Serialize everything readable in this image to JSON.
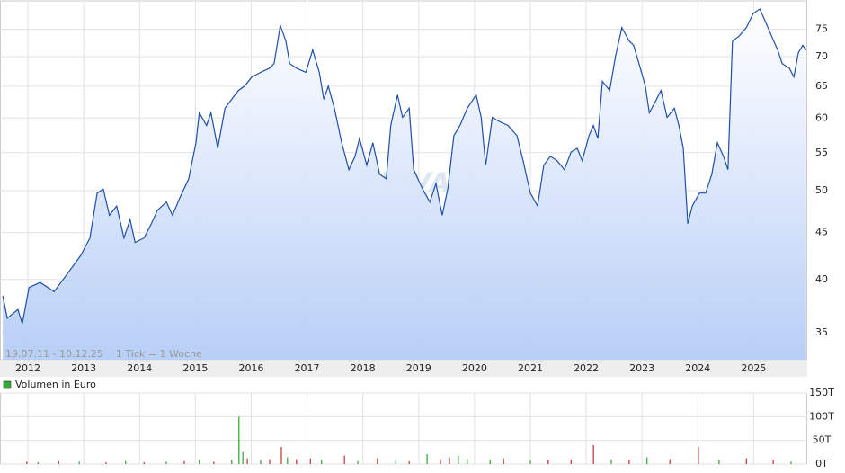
{
  "chart_data": [
    {
      "type": "line",
      "log_scale": true,
      "grid": true,
      "color": "#1f4fa8",
      "annotation": "19.07.11 - 10.12.25    1 Tick = 1 Woche",
      "watermark": "ARIVA",
      "x": [
        2011.55,
        2011.63,
        2011.82,
        2011.9,
        2012.02,
        2012.22,
        2012.47,
        2012.71,
        2012.95,
        2013.11,
        2013.24,
        2013.35,
        2013.46,
        2013.59,
        2013.72,
        2013.83,
        2013.92,
        2014.08,
        2014.21,
        2014.32,
        2014.48,
        2014.59,
        2014.72,
        2014.88,
        2015.01,
        2015.07,
        2015.2,
        2015.28,
        2015.4,
        2015.53,
        2015.65,
        2015.77,
        2015.88,
        2016.01,
        2016.17,
        2016.33,
        2016.41,
        2016.52,
        2016.62,
        2016.69,
        2016.81,
        2016.98,
        2017.1,
        2017.22,
        2017.3,
        2017.38,
        2017.49,
        2017.62,
        2017.75,
        2017.86,
        2017.94,
        2018.07,
        2018.18,
        2018.3,
        2018.42,
        2018.5,
        2018.62,
        2018.71,
        2018.83,
        2018.91,
        2019.07,
        2019.2,
        2019.31,
        2019.42,
        2019.52,
        2019.63,
        2019.74,
        2019.87,
        2020.03,
        2020.12,
        2020.2,
        2020.32,
        2020.44,
        2020.6,
        2020.76,
        2020.87,
        2021.0,
        2021.13,
        2021.24,
        2021.36,
        2021.48,
        2021.61,
        2021.73,
        2021.84,
        2021.93,
        2022.05,
        2022.13,
        2022.21,
        2022.29,
        2022.42,
        2022.53,
        2022.64,
        2022.77,
        2022.85,
        2022.97,
        2023.06,
        2023.13,
        2023.22,
        2023.34,
        2023.45,
        2023.58,
        2023.66,
        2023.74,
        2023.82,
        2023.9,
        2024.03,
        2024.14,
        2024.25,
        2024.35,
        2024.46,
        2024.54,
        2024.62,
        2024.74,
        2024.87,
        2024.99,
        2025.11,
        2025.22,
        2025.32,
        2025.43,
        2025.51,
        2025.64,
        2025.72,
        2025.8,
        2025.88,
        2025.94
      ],
      "values": [
        38.4,
        36.3,
        37.1,
        35.8,
        39.2,
        39.7,
        38.8,
        40.6,
        42.5,
        44.4,
        49.7,
        50.2,
        47.0,
        48.1,
        44.4,
        46.5,
        43.9,
        44.4,
        46.0,
        47.6,
        48.6,
        47.0,
        49.1,
        51.5,
        56.4,
        60.8,
        58.9,
        60.8,
        55.6,
        61.5,
        62.9,
        64.3,
        65,
        66.5,
        67.3,
        68.0,
        68.8,
        75.7,
        72.8,
        68.8,
        68.0,
        67.3,
        71.2,
        67.3,
        62.9,
        65,
        61.5,
        56.4,
        52.7,
        54.5,
        57.0,
        53.3,
        56.4,
        52.1,
        51.5,
        58.9,
        63.6,
        60.1,
        61.5,
        52.7,
        50.2,
        48.6,
        50.9,
        47.0,
        50.2,
        57.4,
        58.9,
        61.5,
        63.6,
        60.1,
        53.3,
        60.1,
        59.5,
        58.9,
        57.4,
        53.9,
        49.7,
        48.1,
        53.3,
        54.5,
        53.9,
        52.7,
        55.1,
        55.6,
        53.9,
        57.4,
        58.9,
        57.0,
        65.8,
        64.3,
        70.3,
        75.3,
        72.8,
        72.0,
        68.0,
        65,
        60.8,
        62.2,
        64.3,
        60.1,
        61.5,
        58.9,
        55.6,
        46.0,
        48.1,
        49.7,
        49.7,
        52.1,
        56.4,
        54.5,
        52.7,
        72.8,
        73.7,
        75.3,
        78.0,
        78.9,
        76.2,
        73.7,
        71.2,
        68.8,
        68.0,
        66.5,
        70.7,
        72.0,
        71.2
      ],
      "xlim": [
        2011.5,
        2025.96
      ],
      "xticks": [
        2012,
        2013,
        2014,
        2015,
        2016,
        2017,
        2018,
        2019,
        2020,
        2021,
        2022,
        2023,
        2024,
        2025
      ],
      "ylim": [
        32.7,
        79.8
      ],
      "yticks": [
        35,
        40,
        45,
        50,
        55,
        60,
        65,
        70,
        75
      ]
    },
    {
      "type": "bar",
      "grid": true,
      "x": [
        2011.98,
        2012.18,
        2012.55,
        2012.92,
        2013.4,
        2013.75,
        2014.08,
        2014.48,
        2014.8,
        2015.07,
        2015.33,
        2015.65,
        2015.78,
        2015.85,
        2015.93,
        2016.17,
        2016.33,
        2016.54,
        2016.65,
        2016.81,
        2017.06,
        2017.26,
        2017.67,
        2017.91,
        2018.26,
        2018.59,
        2018.83,
        2019.15,
        2019.39,
        2019.55,
        2019.71,
        2019.87,
        2020.28,
        2020.52,
        2021.0,
        2021.32,
        2021.73,
        2022.13,
        2022.45,
        2022.77,
        2023.09,
        2023.5,
        2024.01,
        2024.38,
        2024.87,
        2025.35,
        2025.67
      ],
      "series": [
        {
          "name": "Volumen in Euro",
          "color": "#33aa33",
          "values": [
            5,
            4,
            6,
            5,
            4,
            6,
            4,
            5,
            6,
            8,
            5,
            9,
            100,
            25,
            12,
            8,
            10,
            36,
            14,
            10,
            12,
            9,
            18,
            6,
            12,
            8,
            6,
            21,
            10,
            14,
            18,
            10,
            9,
            12,
            7,
            8,
            9,
            40,
            10,
            8,
            14,
            10,
            36,
            8,
            12,
            9,
            5
          ],
          "colors": [
            "#c03030",
            "#30a030",
            "#c03030",
            "#30a030",
            "#c03030",
            "#30a030",
            "#c03030",
            "#30a030",
            "#c03030",
            "#30a030",
            "#c03030",
            "#30a030",
            "#30a030",
            "#30a030",
            "#c03030",
            "#30a030",
            "#c03030",
            "#c03030",
            "#30a030",
            "#c03030",
            "#c03030",
            "#30a030",
            "#c03030",
            "#30a030",
            "#c03030",
            "#30a030",
            "#c03030",
            "#30a030",
            "#c03030",
            "#c03030",
            "#30a030",
            "#30a030",
            "#30a030",
            "#c03030",
            "#30a030",
            "#c03030",
            "#c03030",
            "#c03030",
            "#30a030",
            "#c03030",
            "#30a030",
            "#c03030",
            "#c03030",
            "#30a030",
            "#c03030",
            "#c03030",
            "#30a030"
          ]
        }
      ],
      "xlim": [
        2011.5,
        2025.96
      ],
      "ylim": [
        0,
        150
      ],
      "yticks": [
        {
          "value": 0,
          "label": "0T"
        },
        {
          "value": 50,
          "label": "50T"
        },
        {
          "value": 100,
          "label": "100T"
        },
        {
          "value": 150,
          "label": "150T"
        }
      ]
    }
  ]
}
